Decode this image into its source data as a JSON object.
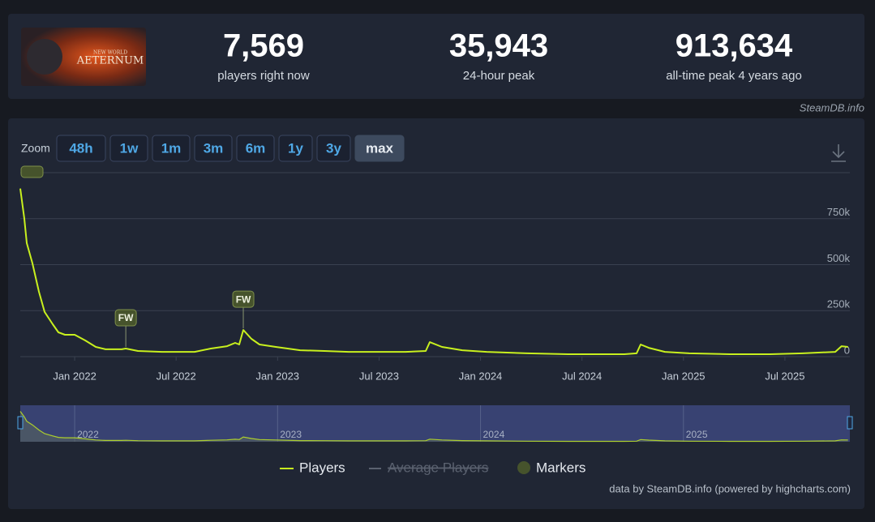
{
  "header": {
    "game_logo_top": "NEW WORLD",
    "game_logo": "AETERNUM",
    "stats": [
      {
        "value": "7,569",
        "label": "players right now"
      },
      {
        "value": "35,943",
        "label": "24-hour peak"
      },
      {
        "value": "913,634",
        "label": "all-time peak 4 years ago"
      }
    ],
    "source": "SteamDB.info"
  },
  "zoom": {
    "label": "Zoom",
    "buttons": [
      "48h",
      "1w",
      "1m",
      "3m",
      "6m",
      "1y",
      "3y",
      "max"
    ],
    "active": 7
  },
  "chart_data": {
    "type": "line",
    "x": [
      2021.732,
      2021.752,
      2021.764,
      2021.792,
      2021.824,
      2021.852,
      2021.892,
      2021.92,
      2021.952,
      2022.0,
      2022.052,
      2022.104,
      2022.152,
      2022.232,
      2022.252,
      2022.312,
      2022.431,
      2022.591,
      2022.671,
      2022.751,
      2022.791,
      2022.811,
      2022.831,
      2022.871,
      2022.911,
      2022.991,
      2023.111,
      2023.231,
      2023.35,
      2023.47,
      2023.63,
      2023.73,
      2023.75,
      2023.81,
      2023.91,
      2024.03,
      2024.23,
      2024.43,
      2024.709,
      2024.769,
      2024.789,
      2024.829,
      2024.909,
      2025.028,
      2025.228,
      2025.428,
      2025.588,
      2025.748,
      2025.779,
      2025.811
    ],
    "series": [
      {
        "name": "Players",
        "color": "#c8f01e",
        "values": [
          913634,
          750000,
          617000,
          507000,
          353000,
          243000,
          176000,
          132000,
          119000,
          119000,
          88000,
          53000,
          40000,
          40000,
          44000,
          31000,
          26000,
          26000,
          44000,
          57000,
          75000,
          66000,
          145000,
          97000,
          66000,
          53000,
          35000,
          31000,
          26000,
          26000,
          26000,
          31000,
          79000,
          53000,
          35000,
          26000,
          18000,
          13000,
          13000,
          18000,
          66000,
          48000,
          26000,
          18000,
          13000,
          13000,
          18000,
          26000,
          57000,
          53000
        ]
      }
    ],
    "hidden_series": [
      {
        "name": "Average Players",
        "color": "#5b6270"
      }
    ],
    "markers_legend": {
      "name": "Markers",
      "color": "#46532c"
    },
    "markers": [
      {
        "x": 2022.252,
        "label": "FW"
      },
      {
        "x": 2022.831,
        "label": "FW"
      }
    ],
    "xlim": [
      2021.732,
      2025.82
    ],
    "xticks": [
      {
        "value": 2022,
        "label": "Jan 2022"
      },
      {
        "value": 2022.5,
        "label": "Jul 2022"
      },
      {
        "value": 2023,
        "label": "Jan 2023"
      },
      {
        "value": 2023.5,
        "label": "Jul 2023"
      },
      {
        "value": 2024,
        "label": "Jan 2024"
      },
      {
        "value": 2024.5,
        "label": "Jul 2024"
      },
      {
        "value": 2025,
        "label": "Jan 2025"
      },
      {
        "value": 2025.5,
        "label": "Jul 2025"
      }
    ],
    "ylim": [
      0,
      1000000
    ],
    "yticks": [
      0,
      {
        "value": 250000,
        "label": "250k"
      },
      {
        "value": 500000,
        "label": "500k"
      },
      {
        "value": 750000,
        "label": "750k"
      }
    ],
    "navigator_ticks": [
      2022,
      2023,
      2024,
      2025
    ],
    "grid": true,
    "credit": "data by SteamDB.info (powered by highcharts.com)"
  }
}
